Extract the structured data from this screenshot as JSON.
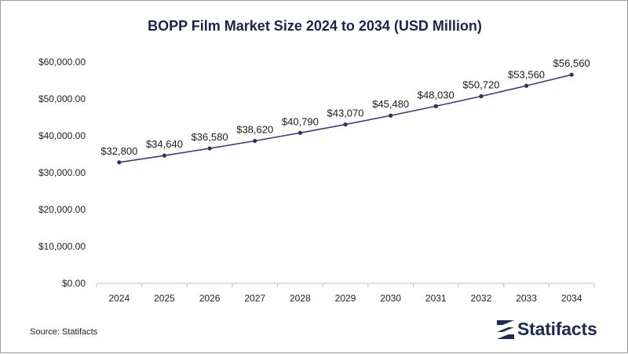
{
  "page": {
    "source_text": "Source: Statifacts",
    "brand_name": "Statifacts"
  },
  "colors": {
    "line": "#3f3f73",
    "marker": "#2f2f5f",
    "title": "#1d2547",
    "axis_text": "#222222",
    "brand": "#1f2a4d"
  },
  "chart_data": {
    "type": "line",
    "title": "BOPP Film Market Size 2024 to 2034 (USD Million)",
    "xlabel": "",
    "ylabel": "",
    "categories": [
      "2024",
      "2025",
      "2026",
      "2027",
      "2028",
      "2029",
      "2030",
      "2031",
      "2032",
      "2033",
      "2034"
    ],
    "values": [
      32800,
      34640,
      36580,
      38620,
      40790,
      43070,
      45480,
      48030,
      50720,
      53560,
      56560
    ],
    "data_labels": [
      "$32,800",
      "$34,640",
      "$36,580",
      "$38,620",
      "$40,790",
      "$43,070",
      "$45,480",
      "$48,030",
      "$50,720",
      "$53,560",
      "$56,560"
    ],
    "y_ticks": [
      0,
      10000,
      20000,
      30000,
      40000,
      50000,
      60000
    ],
    "y_tick_labels": [
      "$0.00",
      "$10,000.00",
      "$20,000.00",
      "$30,000.00",
      "$40,000.00",
      "$50,000.00",
      "$60,000.00"
    ],
    "ylim": [
      0,
      60000
    ],
    "grid": false,
    "legend": "none"
  }
}
